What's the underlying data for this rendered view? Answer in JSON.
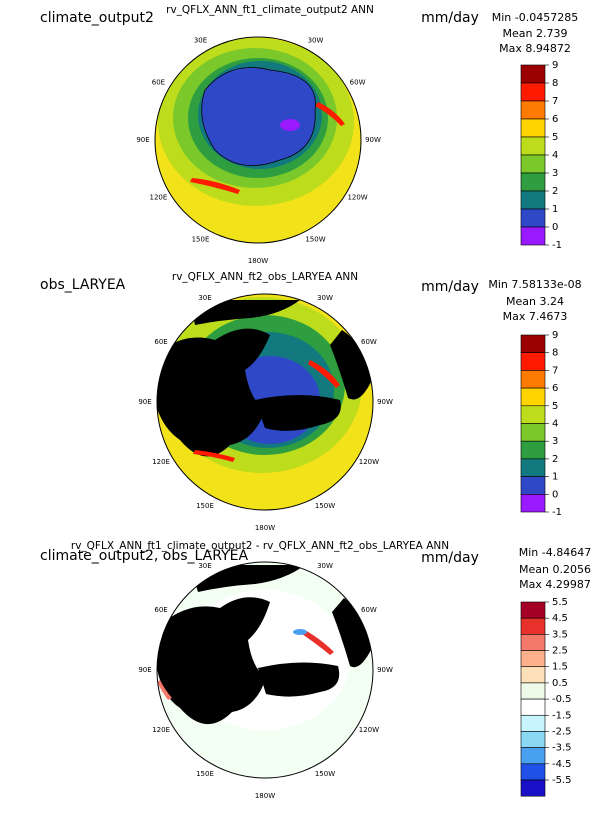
{
  "panels": [
    {
      "title_left": "climate_output2",
      "title_center": "rv_QFLX_ANN_ft1_climate_output2  ANN",
      "units": "mm/day",
      "stats": [
        "Min -0.0457285",
        "Mean 2.739",
        "Max 8.94872"
      ],
      "colorbar": {
        "levels": [
          9,
          8,
          7,
          6,
          5,
          4,
          3,
          2,
          1,
          0,
          -1
        ],
        "colors": [
          "#9b0000",
          "#ff1a00",
          "#ff7a00",
          "#ffd400",
          "#bcdc1c",
          "#7ac82a",
          "#2e9e40",
          "#127a7e",
          "#2f48c8",
          "#9a1aff"
        ]
      },
      "lon_labels": [
        "30E",
        "30W",
        "60E",
        "60W",
        "90E",
        "90W",
        "120E",
        "120W",
        "150E",
        "150W",
        "180W"
      ]
    },
    {
      "title_left": "obs_LARYEA",
      "title_center": "rv_QFLX_ANN_ft2_obs_LARYEA  ANN",
      "units": "mm/day",
      "stats": [
        "Min 7.58133e-08",
        "Mean 3.24",
        "Max 7.4673"
      ],
      "colorbar": {
        "levels": [
          9,
          8,
          7,
          6,
          5,
          4,
          3,
          2,
          1,
          0,
          -1
        ],
        "colors": [
          "#9b0000",
          "#ff1a00",
          "#ff7a00",
          "#ffd400",
          "#bcdc1c",
          "#7ac82a",
          "#2e9e40",
          "#127a7e",
          "#2f48c8",
          "#9a1aff"
        ]
      },
      "lon_labels": [
        "30E",
        "30W",
        "60E",
        "60W",
        "90E",
        "90W",
        "120E",
        "120W",
        "150E",
        "150W",
        "180W"
      ]
    },
    {
      "title_left": "climate_output2, obs_LARYEA",
      "title_center": "rv_QFLX_ANN_ft1_climate_output2 - rv_QFLX_ANN_ft2_obs_LARYEA  ANN",
      "units": "mm/day",
      "stats": [
        "Min -4.84647",
        "Mean 0.2056",
        "Max 4.29987"
      ],
      "colorbar": {
        "levels": [
          5.5,
          4.5,
          3.5,
          2.5,
          1.5,
          0.5,
          -0.5,
          -1.5,
          -2.5,
          -3.5,
          -4.5,
          -5.5
        ],
        "colors": [
          "#a50026",
          "#e8312b",
          "#f4796b",
          "#fdb08a",
          "#fde0b8",
          "#eefbe8",
          "#ffffff",
          "#c8f4ff",
          "#8ad8f4",
          "#4aa0f0",
          "#2050e8",
          "#1a10c8"
        ]
      },
      "lon_labels": [
        "30E",
        "30W",
        "60E",
        "60W",
        "90E",
        "90W",
        "120E",
        "120W",
        "150E",
        "150W",
        "180W"
      ]
    }
  ]
}
